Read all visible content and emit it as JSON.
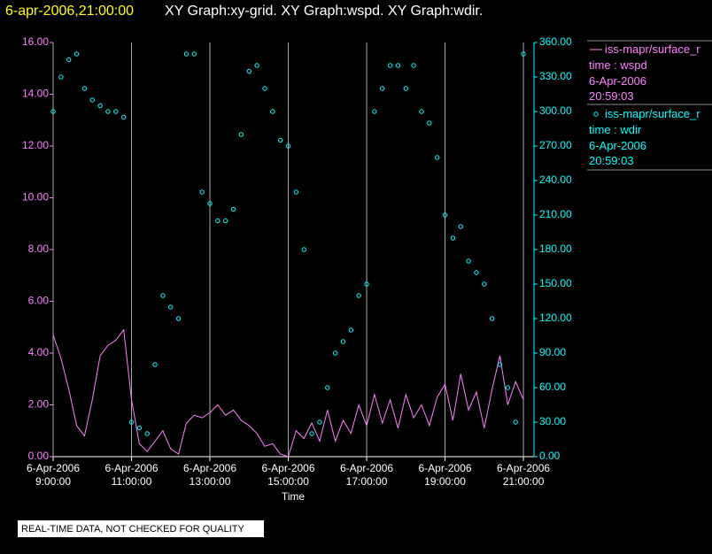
{
  "chart_data": {
    "type": "line-scatter",
    "title": "6-apr-2006,21:00:00",
    "subtitle": "XY Graph:xy-grid.  XY Graph:wspd.  XY Graph:wdir.",
    "x_label": "Time",
    "note": "REAL-TIME DATA, NOT CHECKED FOR QUALITY",
    "xlim": [
      9,
      21.27
    ],
    "xticks": [
      {
        "value": 9,
        "label": "6-Apr-2006\n9:00:00"
      },
      {
        "value": 11,
        "label": "6-Apr-2006\n11:00:00"
      },
      {
        "value": 13,
        "label": "6-Apr-2006\n13:00:00"
      },
      {
        "value": 15,
        "label": "6-Apr-2006\n15:00:00"
      },
      {
        "value": 17,
        "label": "6-Apr-2006\n17:00:00"
      },
      {
        "value": 19,
        "label": "6-Apr-2006\n19:00:00"
      },
      {
        "value": 21,
        "label": "6-Apr-2006\n21:00:00"
      }
    ],
    "ylim": [
      0,
      16
    ],
    "yticks": [
      {
        "value": 0,
        "label": "0.00"
      },
      {
        "value": 2,
        "label": "2.00"
      },
      {
        "value": 4,
        "label": "4.00"
      },
      {
        "value": 6,
        "label": "6.00"
      },
      {
        "value": 8,
        "label": "8.00"
      },
      {
        "value": 10,
        "label": "10.00"
      },
      {
        "value": 12,
        "label": "12.00"
      },
      {
        "value": 14,
        "label": "14.00"
      },
      {
        "value": 16,
        "label": "16.00"
      }
    ],
    "y2lim": [
      0,
      360
    ],
    "y2ticks": [
      {
        "value": 0,
        "label": "0.00"
      },
      {
        "value": 30,
        "label": "30.00"
      },
      {
        "value": 60,
        "label": "60.00"
      },
      {
        "value": 90,
        "label": "90.00"
      },
      {
        "value": 120,
        "label": "120.00"
      },
      {
        "value": 150,
        "label": "150.00"
      },
      {
        "value": 180,
        "label": "180.00"
      },
      {
        "value": 210,
        "label": "210.00"
      },
      {
        "value": 240,
        "label": "240.00"
      },
      {
        "value": 270,
        "label": "270.00"
      },
      {
        "value": 300,
        "label": "300.00"
      },
      {
        "value": 330,
        "label": "330.00"
      },
      {
        "value": 360,
        "label": "360.00"
      }
    ],
    "grid": true,
    "x": [
      9.0,
      9.2,
      9.4,
      9.6,
      9.8,
      10.0,
      10.2,
      10.4,
      10.6,
      10.8,
      11.0,
      11.2,
      11.4,
      11.6,
      11.8,
      12.0,
      12.2,
      12.4,
      12.6,
      12.8,
      13.0,
      13.2,
      13.4,
      13.6,
      13.8,
      14.0,
      14.2,
      14.4,
      14.6,
      14.8,
      15.0,
      15.2,
      15.4,
      15.6,
      15.8,
      16.0,
      16.2,
      16.4,
      16.6,
      16.8,
      17.0,
      17.2,
      17.4,
      17.6,
      17.8,
      18.0,
      18.2,
      18.4,
      18.6,
      18.8,
      19.0,
      19.2,
      19.4,
      19.6,
      19.8,
      20.0,
      20.2,
      20.4,
      20.6,
      20.8,
      21.0
    ],
    "series": [
      {
        "name": "iss-mapr/surface_r",
        "label": "time : wspd",
        "date": "6-Apr-2006",
        "time": "20:59:03",
        "color": "#ff80ff",
        "style": "line",
        "values": [
          4.7,
          3.8,
          2.6,
          1.2,
          0.8,
          2.2,
          3.9,
          4.3,
          4.5,
          4.9,
          2.2,
          0.5,
          0.2,
          0.6,
          1.0,
          0.3,
          0.1,
          1.3,
          1.6,
          1.5,
          1.7,
          2.0,
          1.6,
          1.8,
          1.4,
          1.2,
          0.9,
          0.4,
          0.5,
          0.1,
          0.0,
          1.0,
          0.7,
          1.3,
          0.6,
          1.8,
          0.6,
          1.4,
          0.9,
          2.0,
          1.2,
          2.4,
          1.3,
          2.2,
          1.1,
          2.4,
          1.5,
          2.0,
          1.2,
          2.3,
          2.8,
          1.4,
          3.2,
          1.8,
          2.5,
          1.1,
          2.6,
          3.9,
          2.0,
          2.9,
          2.2
        ]
      },
      {
        "name": "iss-mapr/surface_r",
        "label": "time : wdir",
        "date": "6-Apr-2006",
        "time": "20:59:03",
        "color": "#00ffff",
        "style": "scatter",
        "axis": "y2",
        "values": [
          300,
          330,
          345,
          350,
          320,
          310,
          305,
          300,
          300,
          295,
          30,
          25,
          20,
          80,
          140,
          130,
          120,
          350,
          350,
          230,
          220,
          205,
          205,
          215,
          280,
          335,
          340,
          320,
          300,
          275,
          270,
          230,
          180,
          20,
          30,
          60,
          90,
          100,
          110,
          140,
          150,
          300,
          320,
          340,
          340,
          320,
          340,
          300,
          290,
          260,
          210,
          190,
          200,
          170,
          160,
          150,
          120,
          80,
          60,
          30,
          350
        ]
      }
    ]
  }
}
